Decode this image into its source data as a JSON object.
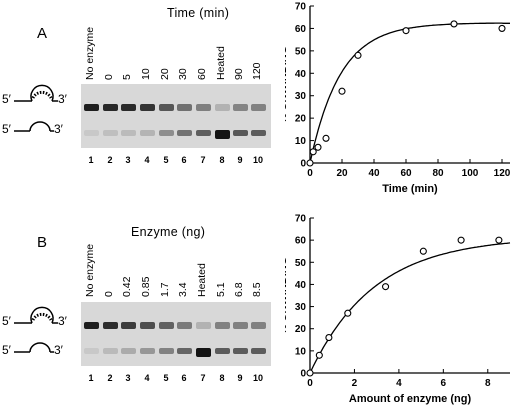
{
  "panel_a": {
    "letter": "A",
    "header": "Time (min)",
    "lanes": [
      "No enzyme",
      "0",
      "5",
      "10",
      "20",
      "30",
      "60",
      "Heated",
      "90",
      "120"
    ],
    "lane_numbers": [
      "1",
      "2",
      "3",
      "4",
      "5",
      "6",
      "7",
      "8",
      "9",
      "10"
    ],
    "substrate_5": "5′",
    "substrate_3": "3′",
    "product_5": "5′",
    "product_3": "3′"
  },
  "panel_b": {
    "letter": "B",
    "header": "Enzyme (ng)",
    "lanes": [
      "No enzyme",
      "0",
      "0.42",
      "0.85",
      "1.7",
      "3.4",
      "Heated",
      "5.1",
      "6.8",
      "8.5"
    ],
    "lane_numbers": [
      "1",
      "2",
      "3",
      "4",
      "5",
      "6",
      "7",
      "8",
      "9",
      "10"
    ],
    "substrate_5": "5′",
    "substrate_3": "3′",
    "product_5": "5′",
    "product_3": "3′"
  },
  "chart_data": [
    {
      "type": "scatter",
      "title": "",
      "xlabel": "Time (min)",
      "ylabel": "% UNWINDING",
      "xlim": [
        0,
        125
      ],
      "ylim": [
        0,
        70
      ],
      "xticks": [
        "0",
        "20",
        "40",
        "60",
        "80",
        "100",
        "120"
      ],
      "yticks": [
        "0",
        "10",
        "20",
        "30",
        "40",
        "50",
        "60",
        "70"
      ],
      "x": [
        0,
        2,
        5,
        10,
        20,
        30,
        60,
        90,
        120
      ],
      "y": [
        0,
        5,
        7,
        11,
        32,
        48,
        59,
        62,
        60
      ],
      "fit_curve": true,
      "grid": false
    },
    {
      "type": "scatter",
      "title": "",
      "xlabel": "Amount of enzyme (ng)",
      "ylabel": "% UNWINDING",
      "xlim": [
        0,
        9
      ],
      "ylim": [
        0,
        70
      ],
      "xticks": [
        "0",
        "2",
        "4",
        "6",
        "8"
      ],
      "yticks": [
        "0",
        "10",
        "20",
        "30",
        "40",
        "50",
        "60",
        "70"
      ],
      "x": [
        0,
        0.42,
        0.85,
        1.7,
        3.4,
        5.1,
        6.8,
        8.5
      ],
      "y": [
        0,
        8,
        16,
        27,
        39,
        55,
        60,
        60
      ],
      "fit_curve": true,
      "grid": false
    }
  ]
}
